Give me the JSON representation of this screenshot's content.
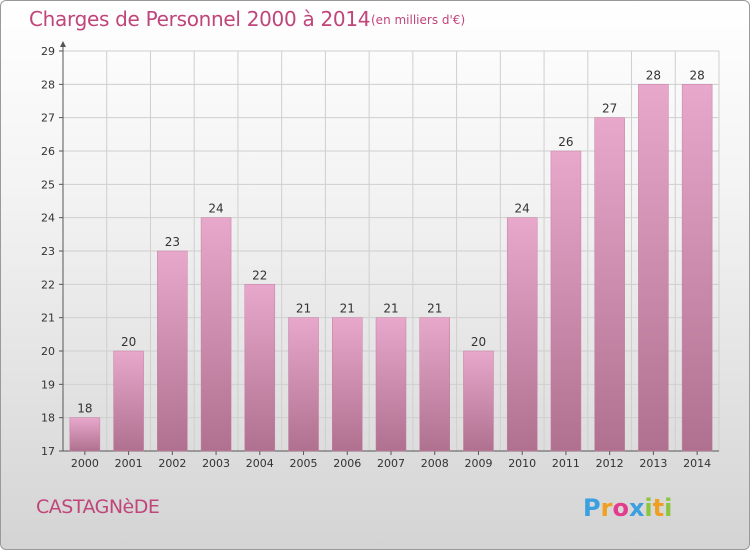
{
  "header": {
    "title": "Charges de Personnel 2000 à 2014",
    "subtitle": "(en milliers d'€)"
  },
  "footer": {
    "commune": "CASTAGNèDE",
    "logo_text": "Proxiti"
  },
  "colors": {
    "title": "#c0457a",
    "bar_top": "#e8a8cc",
    "bar_bottom": "#b0708f",
    "logo_p": "#3aa0e0",
    "logo_r": "#f0a020",
    "logo_o": "#e43c8c",
    "logo_x": "#3aa0e0",
    "logo_i1": "#8cc63f",
    "logo_t": "#f0a020",
    "logo_i2": "#8cc63f"
  },
  "chart_data": {
    "type": "bar",
    "categories": [
      "2000",
      "2001",
      "2002",
      "2003",
      "2004",
      "2005",
      "2006",
      "2007",
      "2008",
      "2009",
      "2010",
      "2011",
      "2012",
      "2013",
      "2014"
    ],
    "values": [
      18,
      20,
      23,
      24,
      22,
      21,
      21,
      21,
      21,
      20,
      24,
      26,
      27,
      28,
      28
    ],
    "ylim": [
      17,
      29
    ],
    "yticks": [
      17,
      18,
      19,
      20,
      21,
      22,
      23,
      24,
      25,
      26,
      27,
      28,
      29
    ],
    "grid": true,
    "data_labels": true
  }
}
